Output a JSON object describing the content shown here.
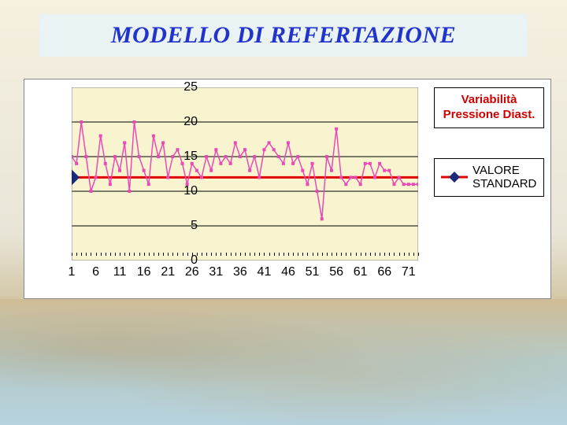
{
  "title": "MODELLO DI REFERTAZIONE",
  "chart": {
    "type": "line",
    "background_color": "#ffffff",
    "plot_background_color": "#f8f4cf",
    "grid_color": "#000000",
    "legend_title": "Variabilità Pressione Diast.",
    "legend_title_color": "#d00000",
    "legend_title_fontsize": 15,
    "legend_standard_label": "VALORE STANDARD",
    "legend_standard_color": "#000000",
    "xlim": [
      1,
      73
    ],
    "ylim": [
      0,
      25
    ],
    "ytick_step": 5,
    "y_ticks": [
      0,
      5,
      10,
      15,
      20,
      25
    ],
    "x_tick_step": 5,
    "x_ticks": [
      1,
      6,
      11,
      16,
      21,
      26,
      31,
      36,
      41,
      46,
      51,
      56,
      61,
      66,
      71
    ],
    "axis_label_fontsize": 16,
    "standard_line": {
      "value": 12,
      "color": "#e00000",
      "stroke_width": 3,
      "marker_color": "#1a2a7a",
      "marker_size": 10
    },
    "series": {
      "color": "#e84bb8",
      "stroke_width": 1.5,
      "marker": "square",
      "marker_size": 4,
      "values": [
        15,
        14,
        20,
        15,
        10,
        12,
        18,
        14,
        11,
        15,
        13,
        17,
        10,
        20,
        15,
        13,
        11,
        18,
        15,
        17,
        12,
        15,
        16,
        14,
        11,
        14,
        13,
        12,
        15,
        13,
        16,
        14,
        15,
        14,
        17,
        15,
        16,
        13,
        15,
        12,
        16,
        17,
        16,
        15,
        14,
        17,
        14,
        15,
        13,
        11,
        14,
        10,
        6,
        15,
        13,
        19,
        12,
        11,
        12,
        12,
        11,
        14,
        14,
        12,
        14,
        13,
        13,
        11,
        12,
        11,
        11,
        11,
        11
      ]
    }
  }
}
